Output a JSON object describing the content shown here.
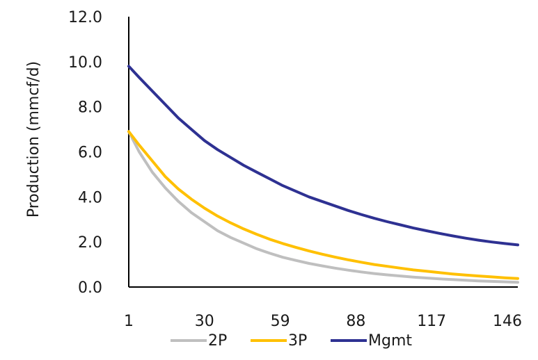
{
  "chart_data": {
    "type": "line",
    "title": "",
    "xlabel": "",
    "ylabel": "Production (mmcf/d)",
    "xlim": [
      1,
      150
    ],
    "ylim": [
      0,
      12
    ],
    "y_ticks": [
      "0.0",
      "2.0",
      "4.0",
      "6.0",
      "8.0",
      "10.0",
      "12.0"
    ],
    "x_ticks": [
      "1",
      "30",
      "59",
      "88",
      "117",
      "146"
    ],
    "grid": false,
    "legend": "bottom",
    "series": [
      {
        "name": "2P",
        "color": "#bfbfbf",
        "x": [
          1,
          5,
          10,
          15,
          20,
          25,
          30,
          35,
          40,
          45,
          50,
          55,
          60,
          65,
          70,
          75,
          80,
          85,
          90,
          95,
          100,
          105,
          110,
          115,
          120,
          125,
          130,
          135,
          140,
          145,
          150
        ],
        "values": [
          6.9,
          6.0,
          5.1,
          4.4,
          3.8,
          3.3,
          2.9,
          2.5,
          2.2,
          1.95,
          1.7,
          1.5,
          1.32,
          1.18,
          1.05,
          0.94,
          0.84,
          0.75,
          0.67,
          0.6,
          0.54,
          0.49,
          0.44,
          0.4,
          0.36,
          0.33,
          0.3,
          0.27,
          0.25,
          0.23,
          0.21
        ]
      },
      {
        "name": "3P",
        "color": "#ffc000",
        "x": [
          1,
          5,
          10,
          15,
          20,
          25,
          30,
          35,
          40,
          45,
          50,
          55,
          60,
          65,
          70,
          75,
          80,
          85,
          90,
          95,
          100,
          105,
          110,
          115,
          120,
          125,
          130,
          135,
          140,
          145,
          150
        ],
        "values": [
          6.9,
          6.3,
          5.6,
          4.9,
          4.35,
          3.9,
          3.5,
          3.15,
          2.85,
          2.58,
          2.34,
          2.12,
          1.93,
          1.76,
          1.6,
          1.46,
          1.33,
          1.21,
          1.1,
          1.0,
          0.92,
          0.84,
          0.76,
          0.7,
          0.64,
          0.58,
          0.53,
          0.49,
          0.45,
          0.41,
          0.38
        ]
      },
      {
        "name": "Mgmt",
        "color": "#2e3192",
        "x": [
          1,
          5,
          10,
          15,
          20,
          25,
          30,
          35,
          40,
          45,
          50,
          55,
          60,
          65,
          70,
          75,
          80,
          85,
          90,
          95,
          100,
          105,
          110,
          115,
          120,
          125,
          130,
          135,
          140,
          145,
          150
        ],
        "values": [
          9.8,
          9.3,
          8.7,
          8.1,
          7.5,
          7.0,
          6.5,
          6.1,
          5.75,
          5.4,
          5.1,
          4.8,
          4.5,
          4.25,
          4.0,
          3.8,
          3.6,
          3.4,
          3.22,
          3.05,
          2.9,
          2.76,
          2.62,
          2.5,
          2.38,
          2.27,
          2.17,
          2.08,
          2.0,
          1.93,
          1.87
        ]
      }
    ]
  }
}
